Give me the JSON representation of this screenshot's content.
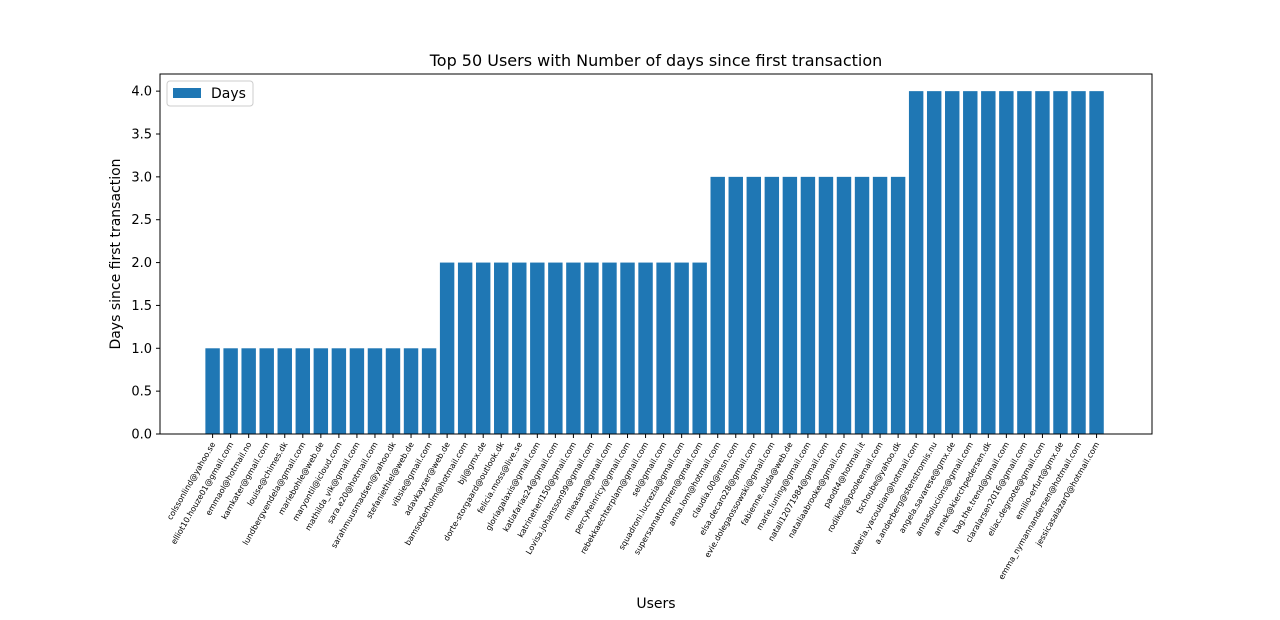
{
  "chart_data": {
    "type": "bar",
    "title": "Top 50 Users with Number of days since first transaction",
    "xlabel": "Users",
    "ylabel": "Days since first transaction",
    "legend": {
      "label": "Days",
      "placement": "top-left"
    },
    "ylim": [
      0,
      4.2
    ],
    "yticks": [
      0.0,
      0.5,
      1.0,
      1.5,
      2.0,
      2.5,
      3.0,
      3.5,
      4.0
    ],
    "ytick_labels": [
      "0.0",
      "0.5",
      "1.0",
      "1.5",
      "2.0",
      "2.5",
      "3.0",
      "3.5",
      "4.0"
    ],
    "bar_color": "#1f77b4",
    "grid": false,
    "categories": [
      "colssonlind@yahoo.se",
      "elliot10.houze01@gmail.com",
      "emmaol@hotmail.no",
      "kamkater@gmail.com",
      "louise@chimes.dk",
      "lundbergvendela@gmail.com",
      "mariebohle@web.de",
      "maryontil@icloud.com",
      "mathilda_vik@gmail.com",
      "sara.e20@hotmail.com",
      "sarahmuusmadsen@yahoo.dk",
      "stefaniethiel@web.de",
      "vibsie@gmail.com",
      "adavkayser@web.de",
      "bamsoderholm@hotmail.com",
      "bjl@gmx.de",
      "dorte-storgaard@outlook.dk",
      "felicia.moss@live.se",
      "gloriagalaxis@gmail.com",
      "katiafarias24@gmail.com",
      "katrineherl150@gmail.com",
      "Lovisa.johansson99@gmail.com",
      "mileasam@gmail.com",
      "percyheinricy@gmail.com",
      "rebekkaechterplam@gmail.com",
      "sel@gmail.com",
      "squadroni.lucrezia@gmail.com",
      "supersamatornpren@gmail.com",
      "anna.lom@hotmail.com",
      "claudia.00@msn.com",
      "elsa.decaro28@gmail.com",
      "evie.dolegaossowski@gmail.com",
      "fabienne.duda@web.de",
      "marie.luning@gmail.com",
      "natali12071984@gmail.com",
      "nataliaabrooke@gmail.com",
      "paodt4@hotmail.it",
      "rodikols@pooleemail.com",
      "tschoube@yahoo.dk",
      "valeria.yacoubian@hotmail.com",
      "a.anderberg@stenstromis.nu",
      "angela.savarese@gmx.de",
      "annasolucions@gmail.com",
      "annek@kierchpedersen.dk",
      "bag.the.trend@gmail.com",
      "claralarsen2016@gmail.com",
      "eliac.degroote@gmail.com",
      "emilio-erfurt@gmx.de",
      "emma_nymannandersen@hotmail.com",
      "jessicasalazar0@hotmail.com"
    ],
    "values": [
      1,
      1,
      1,
      1,
      1,
      1,
      1,
      1,
      1,
      1,
      1,
      1,
      1,
      2,
      2,
      2,
      2,
      2,
      2,
      2,
      2,
      2,
      2,
      2,
      2,
      2,
      2,
      2,
      3,
      3,
      3,
      3,
      3,
      3,
      3,
      3,
      3,
      3,
      3,
      4,
      4,
      4,
      4,
      4,
      4,
      4,
      4,
      4,
      4,
      4
    ]
  }
}
